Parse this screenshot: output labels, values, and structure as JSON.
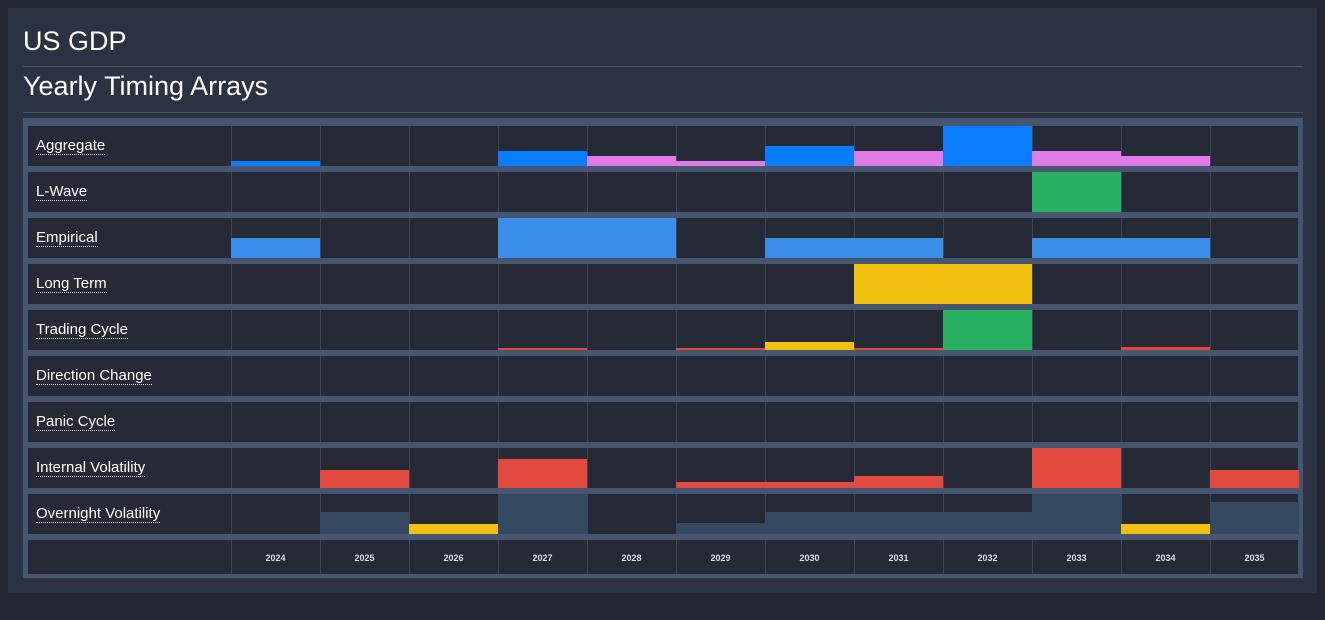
{
  "header": {
    "title": "US GDP",
    "subtitle": "Yearly Timing Arrays"
  },
  "chart_data": {
    "type": "heatmap",
    "title": "Yearly Timing Arrays",
    "categories": [
      "2024",
      "2025",
      "2026",
      "2027",
      "2028",
      "2029",
      "2030",
      "2031",
      "2032",
      "2033",
      "2034",
      "2035"
    ],
    "ylim": [
      0,
      1
    ],
    "series": [
      {
        "name": "Aggregate",
        "colors": [
          "#0a7dff",
          "",
          "",
          "#0a7dff",
          "#e07ae6",
          "#e07ae6",
          "#0a7dff",
          "#e07ae6",
          "#0a7dff",
          "#e07ae6",
          "#e07ae6",
          ""
        ],
        "values": [
          0.12,
          0,
          0,
          0.37,
          0.25,
          0.12,
          0.5,
          0.37,
          1.0,
          0.37,
          0.25,
          0
        ]
      },
      {
        "name": "L-Wave",
        "colors": [
          "",
          "",
          "",
          "",
          "",
          "",
          "",
          "",
          "",
          "#26b05f",
          "",
          ""
        ],
        "values": [
          0,
          0,
          0,
          0,
          0,
          0,
          0,
          0,
          0,
          1.0,
          0,
          0
        ]
      },
      {
        "name": "Empirical",
        "colors": [
          "#3a8de8",
          "",
          "",
          "#3a8de8",
          "#3a8de8",
          "",
          "#3a8de8",
          "#3a8de8",
          "",
          "#3a8de8",
          "#3a8de8",
          ""
        ],
        "values": [
          0.5,
          0,
          0,
          1.0,
          1.0,
          0,
          0.5,
          0.5,
          0,
          0.5,
          0.5,
          0
        ]
      },
      {
        "name": "Long Term",
        "colors": [
          "",
          "",
          "",
          "",
          "",
          "",
          "",
          "#f0c20f",
          "#f0c20f",
          "",
          "",
          ""
        ],
        "values": [
          0,
          0,
          0,
          0,
          0,
          0,
          0,
          1.0,
          1.0,
          0,
          0,
          0
        ]
      },
      {
        "name": "Trading Cycle",
        "colors": [
          "",
          "",
          "",
          "#e34a3f",
          "",
          "#e34a3f",
          "#f0c20f",
          "#e34a3f",
          "#26b05f",
          "",
          "#e34a3f",
          ""
        ],
        "values": [
          0,
          0,
          0,
          0.04,
          0,
          0.06,
          0.2,
          0.06,
          1.0,
          0,
          0.08,
          0
        ]
      },
      {
        "name": "Direction Change",
        "colors": [
          "",
          "",
          "",
          "",
          "",
          "",
          "",
          "",
          "",
          "",
          "",
          ""
        ],
        "values": [
          0,
          0,
          0,
          0,
          0,
          0,
          0,
          0,
          0,
          0,
          0,
          0
        ]
      },
      {
        "name": "Panic Cycle",
        "colors": [
          "",
          "",
          "",
          "",
          "",
          "",
          "",
          "",
          "",
          "",
          "",
          ""
        ],
        "values": [
          0,
          0,
          0,
          0,
          0,
          0,
          0,
          0,
          0,
          0,
          0,
          0
        ]
      },
      {
        "name": "Internal Volatility",
        "colors": [
          "",
          "#e34a3f",
          "",
          "#e34a3f",
          "",
          "#e34a3f",
          "#e34a3f",
          "#e34a3f",
          "",
          "#e34a3f",
          "",
          "#e34a3f"
        ],
        "values": [
          0,
          0.45,
          0,
          0.72,
          0,
          0.15,
          0.15,
          0.3,
          0,
          1.0,
          0,
          0.45
        ]
      },
      {
        "name": "Overnight Volatility",
        "colors": [
          "",
          "#354a60",
          "#f0c20f",
          "#354a60",
          "",
          "#354a60",
          "#354a60",
          "#354a60",
          "#354a60",
          "#354a60",
          "#f0c20f",
          "#354a60"
        ],
        "values": [
          0,
          0.55,
          0.25,
          1.0,
          0,
          0.28,
          0.55,
          0.55,
          0.55,
          1.0,
          0.25,
          0.8
        ]
      }
    ]
  }
}
